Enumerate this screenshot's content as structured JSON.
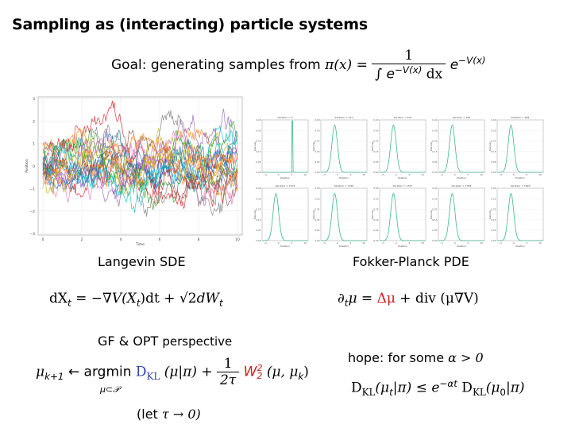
{
  "slide": {
    "title": "Sampling as (interacting) particle systems",
    "goal_text": "Goal: generating samples from",
    "goal_lhs": "π(x) =",
    "goal_num": "1",
    "goal_den_int": "∫",
    "goal_den_body": "e",
    "goal_den_exp": "−V(x)",
    "goal_den_dx": "dx",
    "goal_tail": "e",
    "goal_tail_exp": "−V(x)"
  },
  "left_plot": {
    "x_ticks": [
      "0",
      "2",
      "4",
      "6",
      "8",
      "10"
    ],
    "y_ticks": [
      "3",
      "2",
      "1",
      "0",
      "−1",
      "−2",
      "−3"
    ],
    "xlabel": "Time",
    "ylabel": "Position",
    "series_colors": [
      "#1f77b4",
      "#ff7f0e",
      "#2ca02c",
      "#d62728",
      "#9467bd",
      "#8c564b",
      "#e377c2",
      "#7f7f7f",
      "#bcbd22",
      "#17becf"
    ]
  },
  "right_grid": {
    "panel_titles": [
      "iteration = 0",
      "iteration = 221",
      "iteration = 442",
      "iteration = 663",
      "iteration = 884",
      "iteration = 1105",
      "iteration = 1326",
      "iteration = 1547",
      "iteration = 1768",
      "iteration = 1999"
    ],
    "curve_color": "#3cb98a",
    "xlabel": "Position",
    "ylabel": "Density"
  },
  "labels": {
    "langevin": "Langevin SDE",
    "fokker": "Fokker-Planck PDE",
    "gf": "GF & OPT",
    "gf_tail": "perspective",
    "hope": "hope: for some",
    "hope_cond": "α > 0",
    "let": "(let",
    "let_body": "τ → 0)"
  },
  "equations": {
    "sde_a": "dX",
    "sde_t": "t",
    "sde_b": " = −∇V(X",
    "sde_c": ")dt + ",
    "sde_sqrt": "√2",
    "sde_d": "dW",
    "fp_a": "∂",
    "fp_t": "t",
    "fp_b": "μ = ",
    "fp_lap": "Δμ",
    "fp_c": " + div (μ∇V)",
    "jko_a": "μ",
    "jko_sub": "k+1",
    "jko_b": " ← argmin ",
    "jko_under": "μ⊂𝒫",
    "jko_dkl": "D",
    "jko_dkl_sub": "KL",
    "jko_c": "(μ|π) + ",
    "jko_num": "1",
    "jko_den": "2τ",
    "jko_w": "W",
    "jko_w_sup": "2",
    "jko_w_sub": "2",
    "jko_d": "(μ, μ",
    "jko_k": "k",
    "jko_e": ")",
    "rate_a": "D",
    "rate_a_sub": "KL",
    "rate_b": "(μ",
    "rate_t": "t",
    "rate_c": "|π) ≤ e",
    "rate_exp": "−αt",
    "rate_d": " D",
    "rate_d_sub": "KL",
    "rate_e": "(μ",
    "rate_0": "0",
    "rate_f": "|π)"
  }
}
